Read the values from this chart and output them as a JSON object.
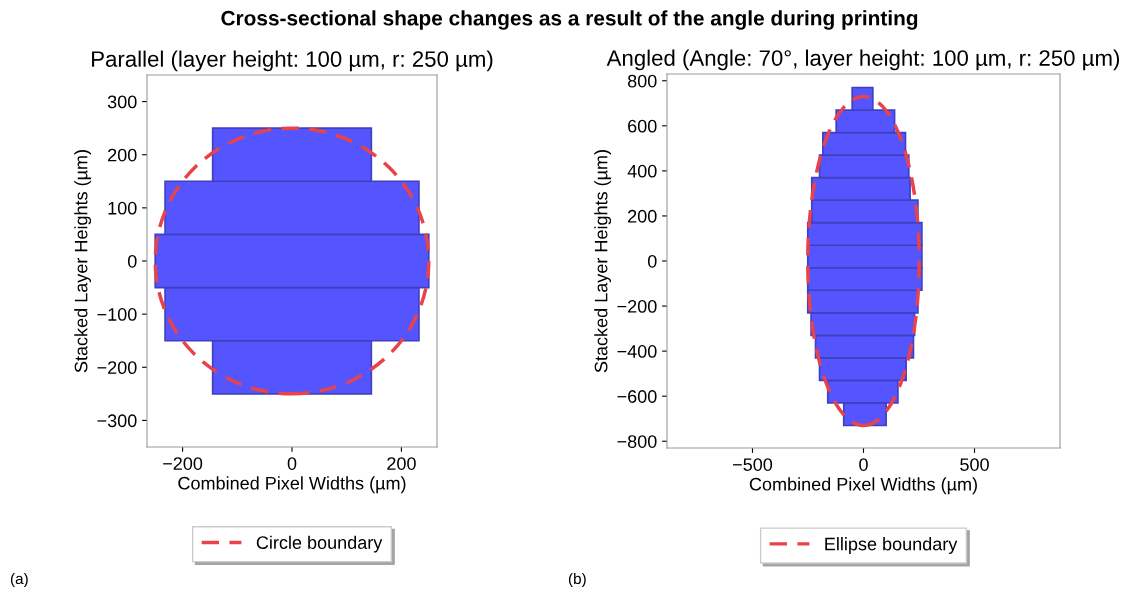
{
  "chart_data": [
    {
      "type": "bar",
      "orientation": "horizontal",
      "title": "Parallel (layer height: 100 µm, r: 250 µm)",
      "xlabel": "Combined Pixel Widths (µm)",
      "ylabel": "Stacked Layer Heights (µm)",
      "annotations": [
        "Cross-sectional shape changes as a result of the angle during printing",
        "(a)",
        "Circle boundary"
      ],
      "xlim": [
        -265,
        265
      ],
      "xticks": [
        -200,
        0,
        200
      ],
      "ylim": [
        -350,
        350
      ],
      "yticks": [
        -300,
        -200,
        -100,
        0,
        100,
        200,
        300
      ],
      "grid": false,
      "series": [
        {
          "color": "#5555ff",
          "x": [
            -200,
            -100,
            0,
            100,
            200
          ],
          "base": [
            -145,
            -232,
            -250,
            -232,
            -145
          ],
          "values": [
            290,
            464,
            500,
            464,
            290
          ]
        }
      ]
    },
    {
      "type": "bar",
      "orientation": "horizontal",
      "title": "Angled (Angle: 70°, layer height: 100 µm, r: 250 µm)",
      "xlabel": "Combined Pixel Widths (µm)",
      "ylabel": "Stacked Layer Heights (µm)",
      "annotations": [
        "(b)",
        "Ellipse boundary"
      ],
      "xlim": [
        -885,
        885
      ],
      "xticks": [
        -500,
        0,
        500
      ],
      "ylim": [
        -830,
        830
      ],
      "yticks": [
        -800,
        -600,
        -400,
        -200,
        0,
        200,
        400,
        600,
        800
      ],
      "grid": false,
      "series": [
        {
          "color": "#5555ff",
          "x": [
            -680,
            -580,
            -480,
            -380,
            -280,
            -180,
            -80,
            20,
            120,
            220,
            320,
            420,
            520,
            620,
            720
          ],
          "base": [
            -89,
            -161,
            -198,
            -216,
            -236,
            -251,
            -251,
            -251,
            -251,
            -233,
            -233,
            -198,
            -183,
            -123,
            -51
          ],
          "values": [
            191,
            316,
            390,
            441,
            466,
            496,
            514,
            514,
            514,
            478,
            443,
            402,
            372,
            263,
            93
          ]
        }
      ]
    }
  ]
}
